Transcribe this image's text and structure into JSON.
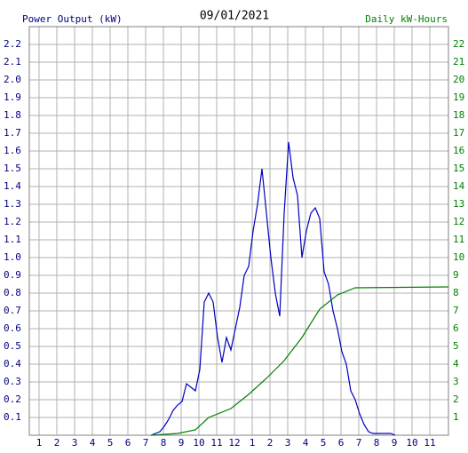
{
  "chart_data": {
    "type": "line",
    "title": "09/01/2021",
    "y_label": "Power Output (kW)",
    "y2_label": "Daily kW-Hours",
    "xlim": [
      0.45,
      24.05
    ],
    "xticks": [
      {
        "value": 1,
        "label": "1"
      },
      {
        "value": 2,
        "label": "2"
      },
      {
        "value": 3,
        "label": "3"
      },
      {
        "value": 4,
        "label": "4"
      },
      {
        "value": 5,
        "label": "5"
      },
      {
        "value": 6,
        "label": "6"
      },
      {
        "value": 7,
        "label": "7"
      },
      {
        "value": 8,
        "label": "8"
      },
      {
        "value": 9,
        "label": "9"
      },
      {
        "value": 10,
        "label": "10"
      },
      {
        "value": 11,
        "label": "11"
      },
      {
        "value": 12,
        "label": "12"
      },
      {
        "value": 13,
        "label": "1"
      },
      {
        "value": 14,
        "label": "2"
      },
      {
        "value": 15,
        "label": "3"
      },
      {
        "value": 16,
        "label": "4"
      },
      {
        "value": 17,
        "label": "5"
      },
      {
        "value": 18,
        "label": "6"
      },
      {
        "value": 19,
        "label": "7"
      },
      {
        "value": 20,
        "label": "8"
      },
      {
        "value": 21,
        "label": "9"
      },
      {
        "value": 22,
        "label": "10"
      },
      {
        "value": 23,
        "label": "11"
      }
    ],
    "ylim": [
      0,
      2.3
    ],
    "yticks": [
      {
        "value": 0.1,
        "label": "0.1"
      },
      {
        "value": 0.2,
        "label": "0.2"
      },
      {
        "value": 0.3,
        "label": "0.3"
      },
      {
        "value": 0.4,
        "label": "0.4"
      },
      {
        "value": 0.5,
        "label": "0.5"
      },
      {
        "value": 0.6,
        "label": "0.6"
      },
      {
        "value": 0.7,
        "label": "0.7"
      },
      {
        "value": 0.8,
        "label": "0.8"
      },
      {
        "value": 0.9,
        "label": "0.9"
      },
      {
        "value": 1.0,
        "label": "1.0"
      },
      {
        "value": 1.1,
        "label": "1.1"
      },
      {
        "value": 1.2,
        "label": "1.2"
      },
      {
        "value": 1.3,
        "label": "1.3"
      },
      {
        "value": 1.4,
        "label": "1.4"
      },
      {
        "value": 1.5,
        "label": "1.5"
      },
      {
        "value": 1.6,
        "label": "1.6"
      },
      {
        "value": 1.7,
        "label": "1.7"
      },
      {
        "value": 1.8,
        "label": "1.8"
      },
      {
        "value": 1.9,
        "label": "1.9"
      },
      {
        "value": 2.0,
        "label": "2.0"
      },
      {
        "value": 2.1,
        "label": "2.1"
      },
      {
        "value": 2.2,
        "label": "2.2"
      }
    ],
    "y2lim": [
      0,
      23
    ],
    "y2ticks": [
      1,
      2,
      3,
      4,
      5,
      6,
      7,
      8,
      9,
      10,
      11,
      12,
      13,
      14,
      15,
      16,
      17,
      18,
      19,
      20,
      21,
      22
    ],
    "grid": true,
    "series": [
      {
        "name": "Power Output (kW)",
        "color": "#0000c0",
        "x": [
          7.3,
          7.8,
          8.05,
          8.3,
          8.55,
          8.8,
          9.05,
          9.3,
          9.55,
          9.8,
          10.05,
          10.3,
          10.55,
          10.8,
          11.05,
          11.3,
          11.55,
          11.8,
          12.05,
          12.3,
          12.55,
          12.8,
          13.05,
          13.3,
          13.55,
          13.8,
          14.05,
          14.3,
          14.55,
          14.8,
          15.05,
          15.3,
          15.55,
          15.8,
          16.05,
          16.3,
          16.55,
          16.8,
          17.05,
          17.3,
          17.55,
          17.8,
          18.05,
          18.3,
          18.55,
          18.8,
          19.05,
          19.3,
          19.55,
          19.8,
          20.8,
          21.05
        ],
        "values": [
          0,
          0.02,
          0.05,
          0.09,
          0.14,
          0.17,
          0.19,
          0.29,
          0.27,
          0.25,
          0.37,
          0.75,
          0.8,
          0.75,
          0.55,
          0.41,
          0.55,
          0.48,
          0.6,
          0.72,
          0.9,
          0.95,
          1.15,
          1.3,
          1.5,
          1.25,
          1.0,
          0.8,
          0.67,
          1.25,
          1.65,
          1.45,
          1.35,
          1.0,
          1.15,
          1.25,
          1.28,
          1.22,
          0.92,
          0.85,
          0.7,
          0.6,
          0.47,
          0.4,
          0.25,
          0.2,
          0.12,
          0.06,
          0.02,
          0.01,
          0.01,
          0
        ]
      },
      {
        "name": "Daily kW-Hours",
        "color": "#008000",
        "axis": "y2",
        "x": [
          7.3,
          8.8,
          9.8,
          10.55,
          11.8,
          12.8,
          13.8,
          14.8,
          15.8,
          16.8,
          17.8,
          18.8,
          24.05
        ],
        "values": [
          0,
          0.1,
          0.3,
          1.0,
          1.5,
          2.3,
          3.2,
          4.2,
          5.5,
          7.1,
          7.9,
          8.3,
          8.35
        ]
      }
    ]
  }
}
